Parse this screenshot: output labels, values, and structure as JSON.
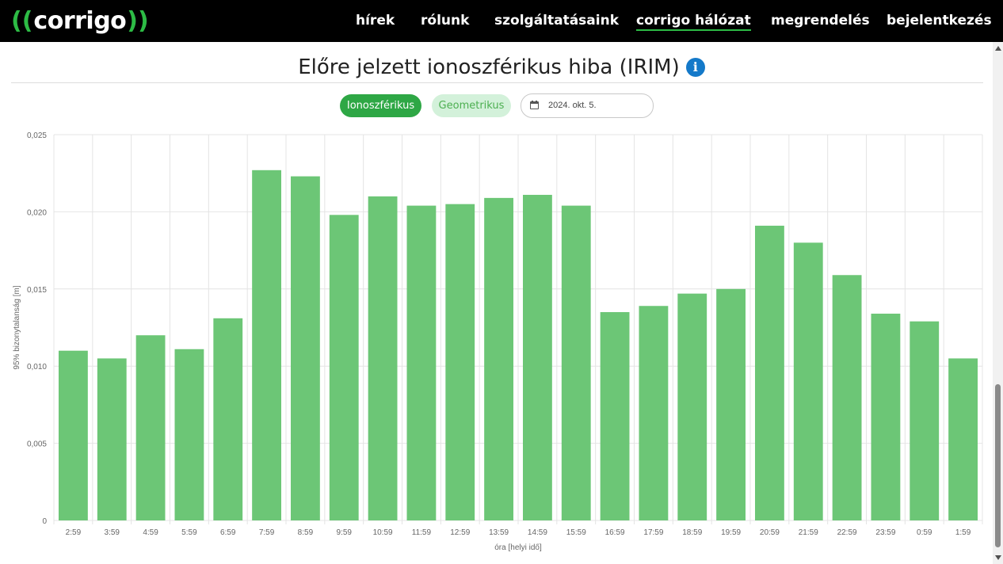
{
  "nav": {
    "logo_text": "corrigo",
    "items": [
      {
        "label": "hírek"
      },
      {
        "label": "rólunk"
      },
      {
        "label": "szolgáltatásaink"
      },
      {
        "label": "corrigo hálózat",
        "active": true
      },
      {
        "label": "megrendelés"
      },
      {
        "label": "bejelentkezés"
      }
    ]
  },
  "page": {
    "title": "Előre jelzett ionoszférikus hiba (IRIM)",
    "info_icon": "info-icon"
  },
  "controls": {
    "tab_ionospheric": "Ionoszférikus",
    "tab_geometric": "Geometrikus",
    "date_value": "2024. okt. 5.",
    "date_icon": "calendar-icon"
  },
  "colors": {
    "brand_green": "#2dbb45",
    "bar_fill": "#6cc676",
    "pill_active": "#2ea745",
    "pill_inactive_bg": "#d3f1da",
    "info_blue": "#1479c9"
  },
  "chart_data": {
    "type": "bar",
    "categories": [
      "2:59",
      "3:59",
      "4:59",
      "5:59",
      "6:59",
      "7:59",
      "8:59",
      "9:59",
      "10:59",
      "11:59",
      "12:59",
      "13:59",
      "14:59",
      "15:59",
      "16:59",
      "17:59",
      "18:59",
      "19:59",
      "20:59",
      "21:59",
      "22:59",
      "23:59",
      "0:59",
      "1:59"
    ],
    "values": [
      0.011,
      0.0105,
      0.012,
      0.0111,
      0.0131,
      0.0227,
      0.0223,
      0.0198,
      0.021,
      0.0204,
      0.0205,
      0.0209,
      0.0211,
      0.0204,
      0.0135,
      0.0139,
      0.0147,
      0.015,
      0.0191,
      0.018,
      0.0159,
      0.0134,
      0.0129,
      0.0105
    ],
    "xlabel": "óra [helyi idő]",
    "ylabel": "95% bizonytalanság [m]",
    "ylim": [
      0,
      0.025
    ],
    "yticks": [
      "0",
      "0,005",
      "0,010",
      "0,015",
      "0,020",
      "0,025"
    ],
    "grid": true,
    "legend": "none"
  }
}
